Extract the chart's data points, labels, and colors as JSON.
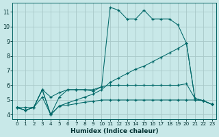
{
  "xlabel": "Humidex (Indice chaleur)",
  "background_color": "#c8e8e8",
  "grid_color": "#a8c8c8",
  "line_color": "#006868",
  "xlim": [
    -0.5,
    23.5
  ],
  "ylim": [
    3.7,
    11.6
  ],
  "xticks": [
    0,
    1,
    2,
    3,
    4,
    5,
    6,
    7,
    8,
    9,
    10,
    11,
    12,
    13,
    14,
    15,
    16,
    17,
    18,
    19,
    20,
    21,
    22,
    23
  ],
  "yticks": [
    4,
    5,
    6,
    7,
    8,
    9,
    10,
    11
  ],
  "line1_x": [
    0,
    1,
    2,
    3,
    4,
    5,
    6,
    7,
    8,
    9,
    10,
    11,
    12,
    13,
    14,
    15,
    16,
    17,
    18,
    19,
    20,
    21,
    22,
    23
  ],
  "line1_y": [
    4.5,
    4.3,
    4.5,
    5.7,
    4.0,
    5.2,
    5.7,
    5.7,
    5.7,
    5.6,
    5.9,
    11.3,
    11.1,
    10.5,
    10.5,
    11.1,
    10.5,
    10.5,
    10.5,
    10.1,
    8.85,
    5.1,
    4.95,
    4.7
  ],
  "line2_x": [
    0,
    1,
    2,
    3,
    4,
    5,
    6,
    7,
    8,
    9,
    10,
    11,
    12,
    13,
    14,
    15,
    16,
    17,
    18,
    19,
    20,
    21,
    22,
    23
  ],
  "line2_y": [
    4.5,
    4.3,
    4.5,
    5.2,
    4.0,
    4.6,
    4.8,
    5.0,
    5.2,
    5.4,
    5.7,
    6.2,
    6.5,
    6.8,
    7.1,
    7.3,
    7.6,
    7.9,
    8.2,
    8.5,
    8.85,
    5.1,
    4.95,
    4.7
  ],
  "line3_x": [
    0,
    1,
    2,
    3,
    4,
    5,
    6,
    7,
    8,
    9,
    10,
    11,
    12,
    13,
    14,
    15,
    16,
    17,
    18,
    19,
    20,
    21,
    22,
    23
  ],
  "line3_y": [
    4.5,
    4.5,
    4.5,
    5.7,
    5.2,
    5.5,
    5.7,
    5.7,
    5.7,
    5.7,
    5.9,
    6.0,
    6.0,
    6.0,
    6.0,
    6.0,
    6.0,
    6.0,
    6.0,
    6.0,
    6.1,
    5.1,
    4.95,
    4.7
  ],
  "line4_x": [
    0,
    1,
    2,
    3,
    4,
    5,
    6,
    7,
    8,
    9,
    10,
    11,
    12,
    13,
    14,
    15,
    16,
    17,
    18,
    19,
    20,
    21,
    22,
    23
  ],
  "line4_y": [
    4.5,
    4.3,
    4.5,
    5.7,
    4.0,
    4.6,
    4.65,
    4.75,
    4.85,
    4.9,
    5.0,
    5.0,
    5.0,
    5.0,
    5.0,
    5.0,
    5.0,
    5.0,
    5.0,
    5.0,
    5.0,
    5.0,
    4.95,
    4.7
  ]
}
